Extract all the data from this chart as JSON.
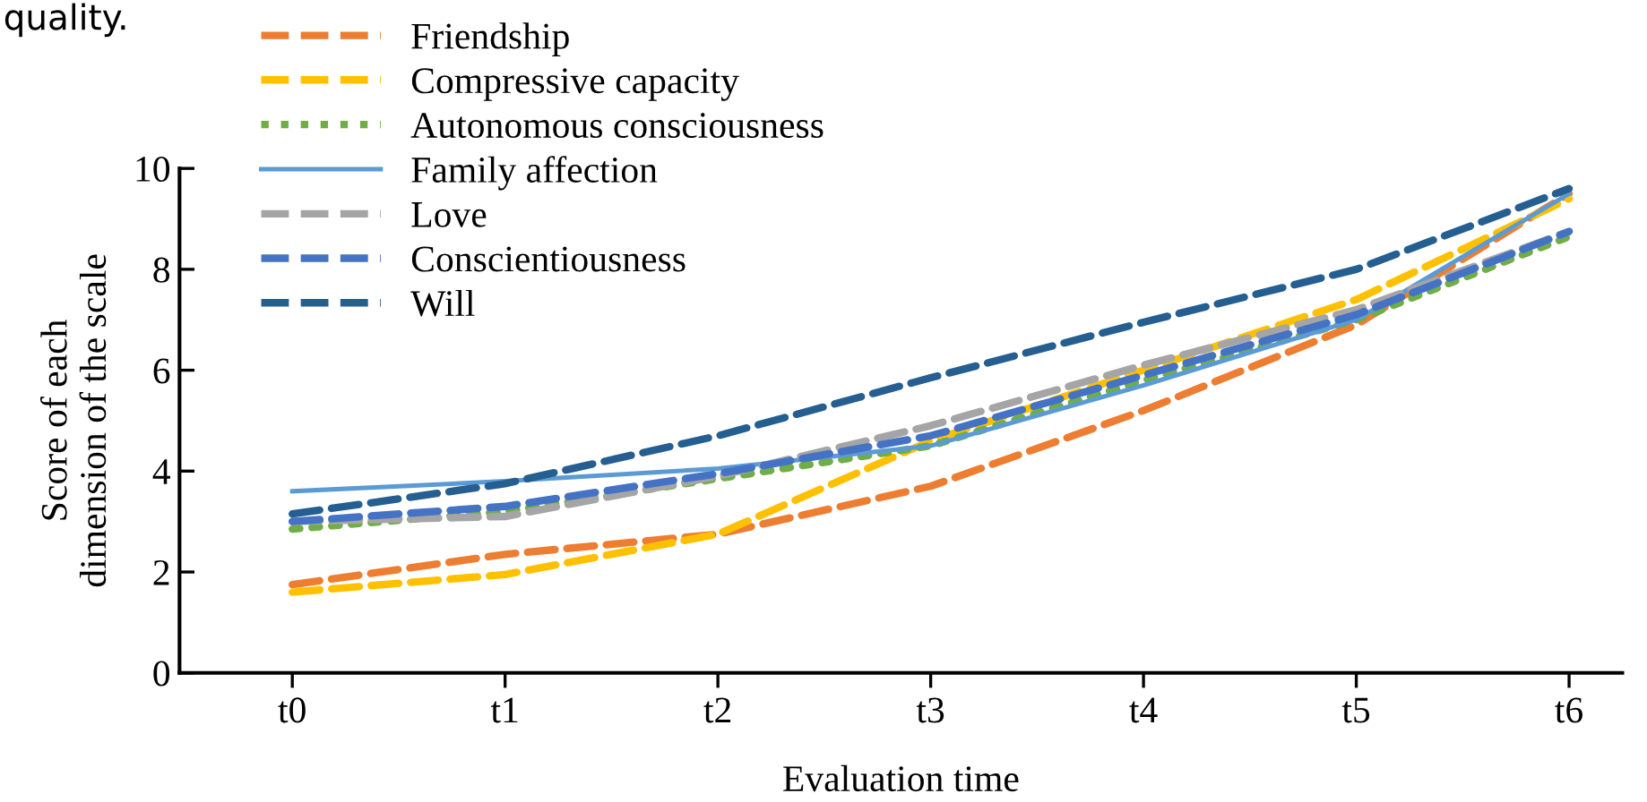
{
  "chart_data": {
    "type": "line",
    "xlabel": "Evaluation time",
    "ylabel": "Score of each\ndimension of the scale",
    "annotations": [
      "quality."
    ],
    "categories": [
      "t0",
      "t1",
      "t2",
      "t3",
      "t4",
      "t5",
      "t6"
    ],
    "ylim": [
      0,
      10
    ],
    "yticks": [
      0,
      2,
      4,
      6,
      8,
      10
    ],
    "grid": false,
    "legend": "top left",
    "marker": "none",
    "series": [
      {
        "name": "Friendship",
        "color": "#ed7d31",
        "line_style": "dashed",
        "values": [
          1.75,
          2.35,
          2.75,
          3.7,
          5.2,
          6.9,
          9.5
        ]
      },
      {
        "name": "Compressive capacity",
        "color": "#ffc000",
        "line_style": "dashed",
        "values": [
          1.6,
          1.95,
          2.75,
          4.6,
          6.0,
          7.4,
          9.4
        ]
      },
      {
        "name": "Autonomous consciousness",
        "color": "#70ad47",
        "line_style": "dotted",
        "values": [
          2.85,
          3.2,
          3.85,
          4.5,
          5.8,
          7.0,
          8.65
        ]
      },
      {
        "name": "Family affection",
        "color": "#5b9bd5",
        "line_style": "solid",
        "values": [
          3.6,
          3.8,
          4.05,
          4.5,
          5.7,
          7.0,
          9.5
        ]
      },
      {
        "name": "Love",
        "color": "#a5a5a5",
        "line_style": "dashed",
        "values": [
          3.0,
          3.1,
          3.9,
          4.9,
          6.1,
          7.2,
          8.75
        ]
      },
      {
        "name": "Conscientiousness",
        "color": "#4472c4",
        "line_style": "dashed",
        "values": [
          3.0,
          3.3,
          3.95,
          4.7,
          5.9,
          7.1,
          8.75
        ]
      },
      {
        "name": "Will",
        "color": "#255e91",
        "line_style": "dashed",
        "values": [
          3.15,
          3.75,
          4.7,
          5.85,
          6.95,
          8.0,
          9.6
        ]
      }
    ]
  }
}
